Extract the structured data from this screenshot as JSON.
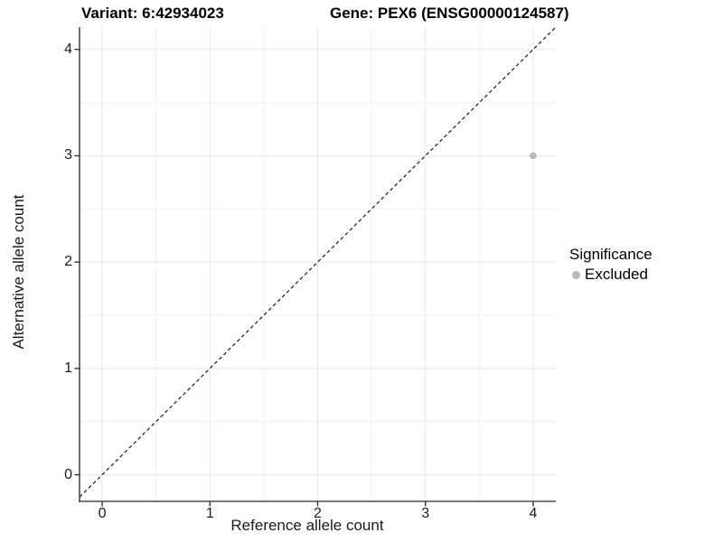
{
  "header": {
    "variant_title": "Variant: 6:42934023",
    "gene_title": "Gene: PEX6 (ENSG00000124587)"
  },
  "axes": {
    "x_label": "Reference allele count",
    "y_label": "Alternative allele count"
  },
  "legend": {
    "title": "Significance",
    "items": [
      {
        "label": "Excluded",
        "color": "#b9b9b9"
      }
    ]
  },
  "colors": {
    "background": "#ffffff",
    "grid_major": "#e7e7e7",
    "grid_minor": "#f2f2f2",
    "axis_line": "#4d4d4d",
    "tick_mark": "#333333",
    "ref_line": "#1a1a1a",
    "text": "#000000",
    "point": "#b9b9b9"
  },
  "chart_data": {
    "type": "scatter",
    "title": "Variant: 6:42934023   Gene: PEX6 (ENSG00000124587)",
    "xlabel": "Reference allele count",
    "ylabel": "Alternative allele count",
    "xlim": [
      -0.21,
      4.21
    ],
    "ylim": [
      -0.25,
      4.21
    ],
    "xticks": [
      0,
      1,
      2,
      3,
      4
    ],
    "yticks": [
      0,
      1,
      2,
      3,
      4
    ],
    "grid": true,
    "minor_gridlines": true,
    "legend_position": "right",
    "series": [
      {
        "name": "Excluded",
        "color": "#b9b9b9",
        "points": [
          {
            "x": 4,
            "y": 3
          }
        ]
      }
    ],
    "reference_line": {
      "type": "identity",
      "slope": 1,
      "intercept": 0,
      "style": "dashed",
      "color": "#1a1a1a"
    }
  }
}
